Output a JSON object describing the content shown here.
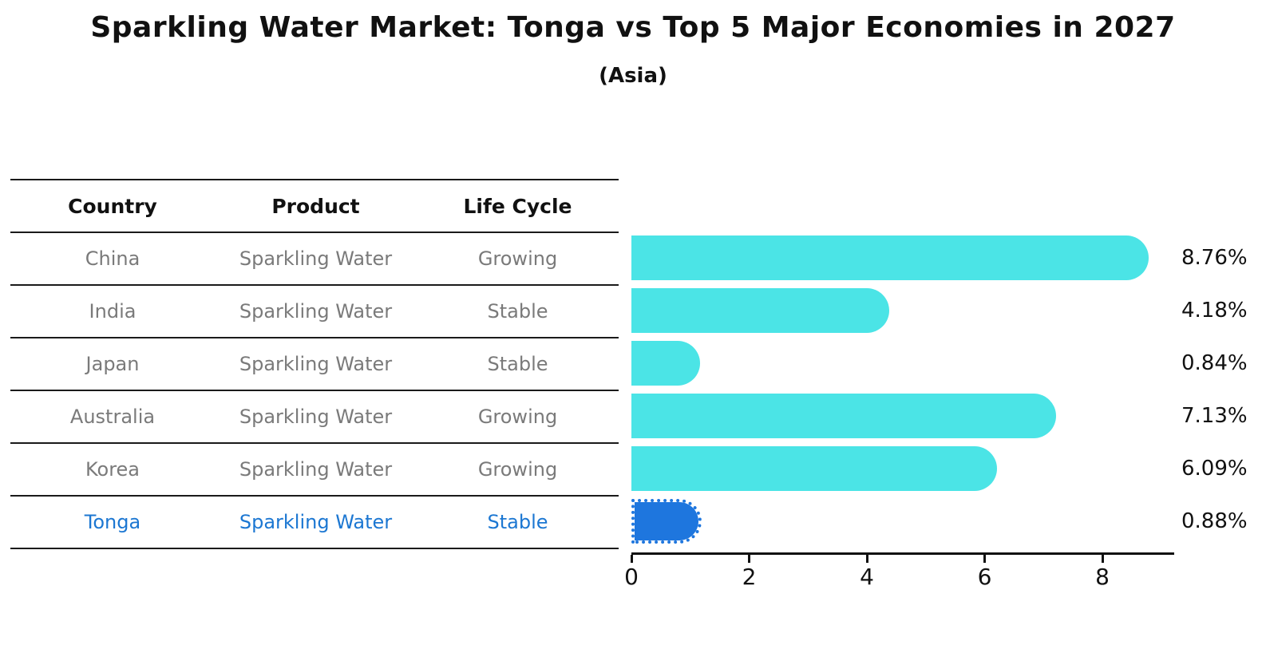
{
  "title": "Sparkling Water Market: Tonga vs Top 5 Major Economies in 2027",
  "subtitle": "(Asia)",
  "table": {
    "headers": {
      "country": "Country",
      "product": "Product",
      "life_cycle": "Life Cycle"
    },
    "rows": [
      {
        "country": "China",
        "product": "Sparkling Water",
        "life_cycle": "Growing",
        "highlight": false
      },
      {
        "country": "India",
        "product": "Sparkling Water",
        "life_cycle": "Stable",
        "highlight": false
      },
      {
        "country": "Japan",
        "product": "Sparkling Water",
        "life_cycle": "Stable",
        "highlight": false
      },
      {
        "country": "Australia",
        "product": "Sparkling Water",
        "life_cycle": "Growing",
        "highlight": false
      },
      {
        "country": "Korea",
        "product": "Sparkling Water",
        "life_cycle": "Growing",
        "highlight": false
      },
      {
        "country": "Tonga",
        "product": "Sparkling Water",
        "life_cycle": "Stable",
        "highlight": true
      }
    ]
  },
  "chart_data": {
    "type": "bar",
    "orientation": "horizontal",
    "title": "Sparkling Water Market: Tonga vs Top 5 Major Economies in 2027",
    "subtitle": "(Asia)",
    "categories": [
      "China",
      "India",
      "Japan",
      "Australia",
      "Korea",
      "Tonga"
    ],
    "values": [
      8.76,
      4.18,
      0.84,
      7.13,
      6.09,
      0.88
    ],
    "value_labels": [
      "8.76%",
      "4.18%",
      "0.84%",
      "7.13%",
      "6.09%",
      "0.88%"
    ],
    "x_ticks": [
      0,
      2,
      4,
      6,
      8
    ],
    "xlim": [
      0,
      9.2
    ],
    "grid": false,
    "legend": false,
    "highlight_index": 5,
    "highlight_edge_style": "dotted",
    "bar_color": "#4be4e6",
    "highlight_color": "#1e76de"
  },
  "colors": {
    "bar_cyan": "#4be4e6",
    "bar_blue": "#1e76de",
    "row_text_gray": "#7a7a7a",
    "highlight_text_blue": "#1c77d2",
    "axis_black": "#111111"
  }
}
